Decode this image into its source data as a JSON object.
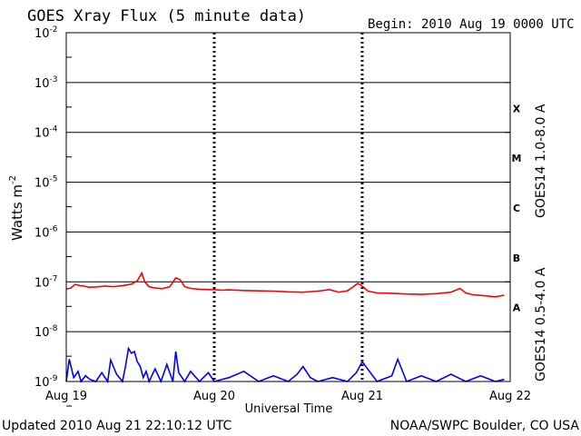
{
  "chart_data": {
    "type": "line",
    "title": "GOES Xray Flux (5 minute data)",
    "begin": "Begin:  2010 Aug 19 0000 UTC",
    "updated": "Updated 2010 Aug 21 22:10:12 UTC",
    "source": "NOAA/SWPC Boulder, CO USA",
    "xlabel": "Universal Time",
    "ylabel_base": "Watts m",
    "ylabel_exp": "-2",
    "y_scale": "log",
    "ylim": [
      1e-09,
      0.01
    ],
    "y_ticks": [
      {
        "value": 0.01,
        "base": "10",
        "exp": "-2"
      },
      {
        "value": 0.001,
        "base": "10",
        "exp": "-3"
      },
      {
        "value": 0.0001,
        "base": "10",
        "exp": "-4"
      },
      {
        "value": 1e-05,
        "base": "10",
        "exp": "-5"
      },
      {
        "value": 1e-06,
        "base": "10",
        "exp": "-6"
      },
      {
        "value": 1e-07,
        "base": "10",
        "exp": "-7"
      },
      {
        "value": 1e-08,
        "base": "10",
        "exp": "-8"
      },
      {
        "value": 1e-09,
        "base": "10",
        "exp": "-9"
      }
    ],
    "x_range_days": [
      0,
      3
    ],
    "x_ticks": [
      {
        "day": 0,
        "label": "Aug 19"
      },
      {
        "day": 1,
        "label": "Aug 20"
      },
      {
        "day": 2,
        "label": "Aug 21"
      },
      {
        "day": 3,
        "label": "Aug 22"
      }
    ],
    "flare_classes": [
      {
        "label": "X",
        "lo": 0.0001,
        "hi": 0.001
      },
      {
        "label": "M",
        "lo": 1e-05,
        "hi": 0.0001
      },
      {
        "label": "C",
        "lo": 1e-06,
        "hi": 1e-05
      },
      {
        "label": "B",
        "lo": 1e-07,
        "hi": 1e-06
      },
      {
        "label": "A",
        "lo": 1e-08,
        "hi": 1e-07
      }
    ],
    "grid": true,
    "series": [
      {
        "name": "GOES14 1.0-8.0 A",
        "color": "#ff0000",
        "x": [
          0.0,
          0.03,
          0.06,
          0.09,
          0.12,
          0.15,
          0.2,
          0.26,
          0.32,
          0.38,
          0.44,
          0.48,
          0.51,
          0.53,
          0.56,
          0.6,
          0.65,
          0.7,
          0.74,
          0.77,
          0.8,
          0.84,
          0.9,
          0.96,
          1.0,
          1.05,
          1.1,
          1.2,
          1.3,
          1.4,
          1.5,
          1.6,
          1.7,
          1.78,
          1.84,
          1.9,
          1.94,
          1.97,
          2.0,
          2.04,
          2.1,
          2.2,
          2.3,
          2.4,
          2.5,
          2.6,
          2.66,
          2.7,
          2.75,
          2.82,
          2.9,
          2.96
        ],
        "y": [
          7.2e-08,
          7.5e-08,
          8.9e-08,
          8.4e-08,
          8.2e-08,
          7.8e-08,
          7.9e-08,
          8.2e-08,
          8e-08,
          8.4e-08,
          9e-08,
          1.05e-07,
          1.5e-07,
          1e-07,
          8e-08,
          7.5e-08,
          7.3e-08,
          8e-08,
          1.2e-07,
          1.1e-07,
          8e-08,
          7.4e-08,
          7.1e-08,
          7e-08,
          7e-08,
          6.8e-08,
          6.9e-08,
          6.7e-08,
          6.6e-08,
          6.5e-08,
          6.3e-08,
          6.2e-08,
          6.5e-08,
          7e-08,
          6.2e-08,
          6.6e-08,
          8e-08,
          9.3e-08,
          8.2e-08,
          6.5e-08,
          6e-08,
          5.9e-08,
          5.7e-08,
          5.6e-08,
          5.8e-08,
          6.2e-08,
          7.4e-08,
          6e-08,
          5.5e-08,
          5.3e-08,
          5e-08,
          5.4e-08
        ]
      },
      {
        "name": "GOES14 0.5-4.0 A",
        "color": "#0000ff",
        "x": [
          0.0,
          0.02,
          0.05,
          0.08,
          0.1,
          0.13,
          0.16,
          0.2,
          0.24,
          0.28,
          0.3,
          0.34,
          0.38,
          0.4,
          0.42,
          0.44,
          0.46,
          0.48,
          0.5,
          0.52,
          0.54,
          0.56,
          0.6,
          0.64,
          0.68,
          0.72,
          0.74,
          0.76,
          0.8,
          0.84,
          0.9,
          0.96,
          1.0,
          1.1,
          1.2,
          1.3,
          1.4,
          1.5,
          1.56,
          1.6,
          1.65,
          1.7,
          1.8,
          1.9,
          1.96,
          2.0,
          2.1,
          2.2,
          2.24,
          2.3,
          2.4,
          2.5,
          2.6,
          2.7,
          2.8,
          2.9,
          2.96
        ],
        "y": [
          1e-09,
          2.8e-09,
          1.2e-09,
          1.6e-09,
          1e-09,
          1.3e-09,
          1.1e-09,
          1e-09,
          1.5e-09,
          1e-09,
          2.7e-09,
          1.4e-09,
          1e-09,
          2e-09,
          4.6e-09,
          3.7e-09,
          4e-09,
          2.5e-09,
          2e-09,
          1.2e-09,
          1.6e-09,
          1e-09,
          1.8e-09,
          1e-09,
          2.2e-09,
          1e-09,
          4e-09,
          1.5e-09,
          1e-09,
          1.6e-09,
          1e-09,
          1.5e-09,
          1e-09,
          1.2e-09,
          1.6e-09,
          1e-09,
          1.3e-09,
          1e-09,
          1.4e-09,
          2e-09,
          1.2e-09,
          1e-09,
          1.2e-09,
          1e-09,
          1.5e-09,
          2.5e-09,
          1e-09,
          1.3e-09,
          2.8e-09,
          1e-09,
          1.3e-09,
          1e-09,
          1.4e-09,
          1e-09,
          1.3e-09,
          1e-09,
          1.1e-09
        ]
      }
    ]
  }
}
